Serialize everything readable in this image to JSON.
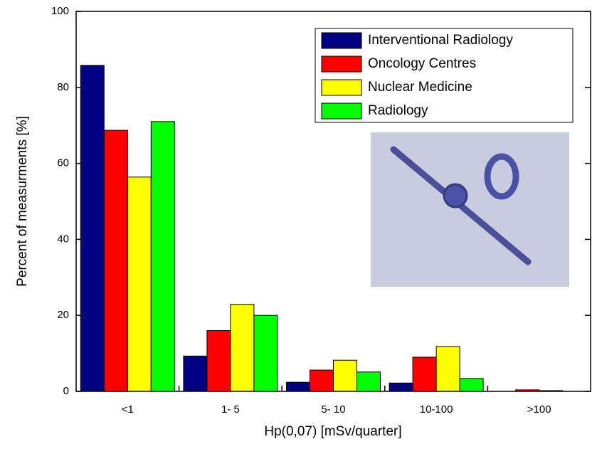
{
  "chart_data": {
    "type": "bar",
    "x_label": "Hp(0,07) [mSv/quarter]",
    "y_label": "Percent of measurments [%]",
    "categories": [
      "<1",
      "1- 5",
      "5- 10",
      "10-100",
      ">100"
    ],
    "series": [
      {
        "name": "Interventional Radiology",
        "color": "#000080",
        "values": [
          85.8,
          9.3,
          2.4,
          2.2,
          0
        ]
      },
      {
        "name": "Oncology Centres",
        "color": "#ff0000",
        "values": [
          68.7,
          16,
          5.6,
          9,
          0.4
        ]
      },
      {
        "name": "Nuclear Medicine",
        "color": "#ffff00",
        "values": [
          56.4,
          22.9,
          8.2,
          11.8,
          0.2
        ]
      },
      {
        "name": "Radiology",
        "color": "#00ff00",
        "values": [
          71,
          20,
          5.1,
          3.4,
          0
        ]
      }
    ],
    "ylim": [
      0,
      100
    ],
    "yticks": [
      0,
      20,
      40,
      60,
      80,
      100
    ]
  }
}
